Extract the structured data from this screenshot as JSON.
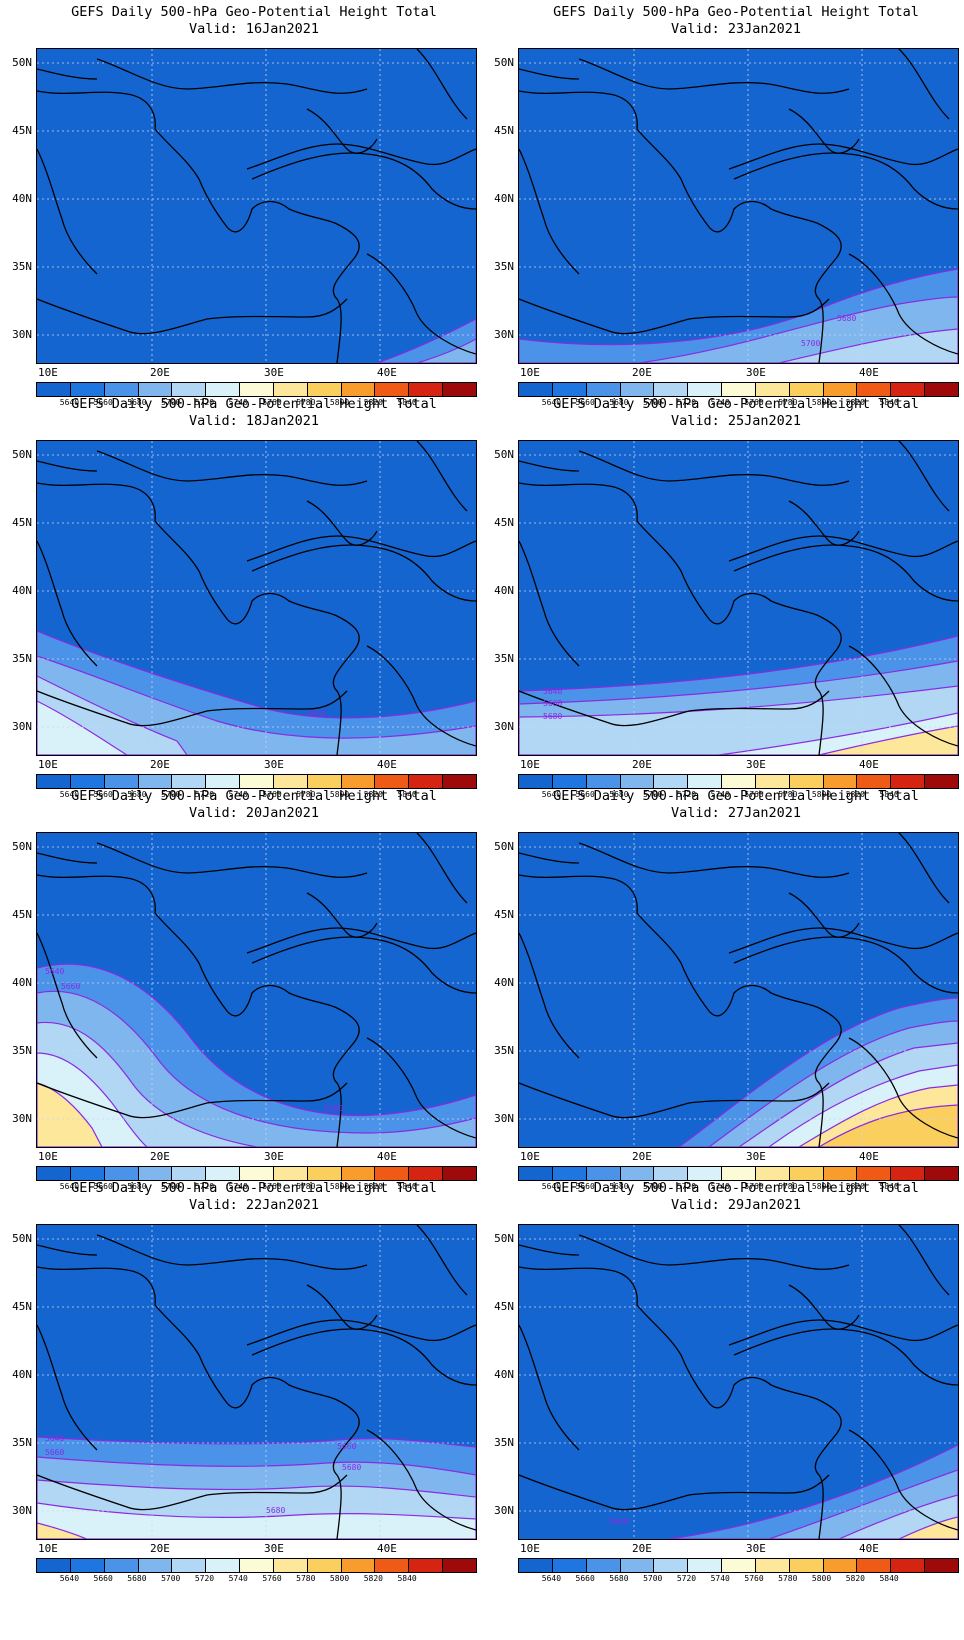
{
  "title_line1": "GEFS Daily 500-hPa Geo-Potential Height Total",
  "valid_prefix": "Valid:",
  "lat_labels": [
    "50N",
    "45N",
    "40N",
    "35N",
    "30N"
  ],
  "lon_labels": [
    "10E",
    "20E",
    "30E",
    "40E"
  ],
  "colorbar": {
    "labels": [
      "5640",
      "5660",
      "5680",
      "5700",
      "5720",
      "5740",
      "5760",
      "5780",
      "5800",
      "5820",
      "5840"
    ],
    "colors": [
      "#1565d0",
      "#1f76e0",
      "#4a93e8",
      "#7fb6ee",
      "#b2d7f5",
      "#d9f2fa",
      "#fbfbd6",
      "#fde79a",
      "#fbcf5d",
      "#f99c2e",
      "#ef5b16",
      "#d62412",
      "#9e0a0a"
    ]
  },
  "contour_color": "#8a2be2",
  "panels": [
    {
      "valid": "16Jan2021",
      "labels": []
    },
    {
      "valid": "23Jan2021",
      "labels": [
        "5680",
        "5700"
      ]
    },
    {
      "valid": "18Jan2021",
      "labels": [
        "5640"
      ]
    },
    {
      "valid": "25Jan2021",
      "labels": [
        "5640",
        "5660",
        "5680"
      ]
    },
    {
      "valid": "20Jan2021",
      "labels": [
        "5640",
        "5660",
        "5680"
      ]
    },
    {
      "valid": "27Jan2021",
      "labels": []
    },
    {
      "valid": "22Jan2021",
      "labels": [
        "5640",
        "5660",
        "5660",
        "5680",
        "5680"
      ]
    },
    {
      "valid": "29Jan2021",
      "labels": [
        "5660"
      ]
    }
  ]
}
